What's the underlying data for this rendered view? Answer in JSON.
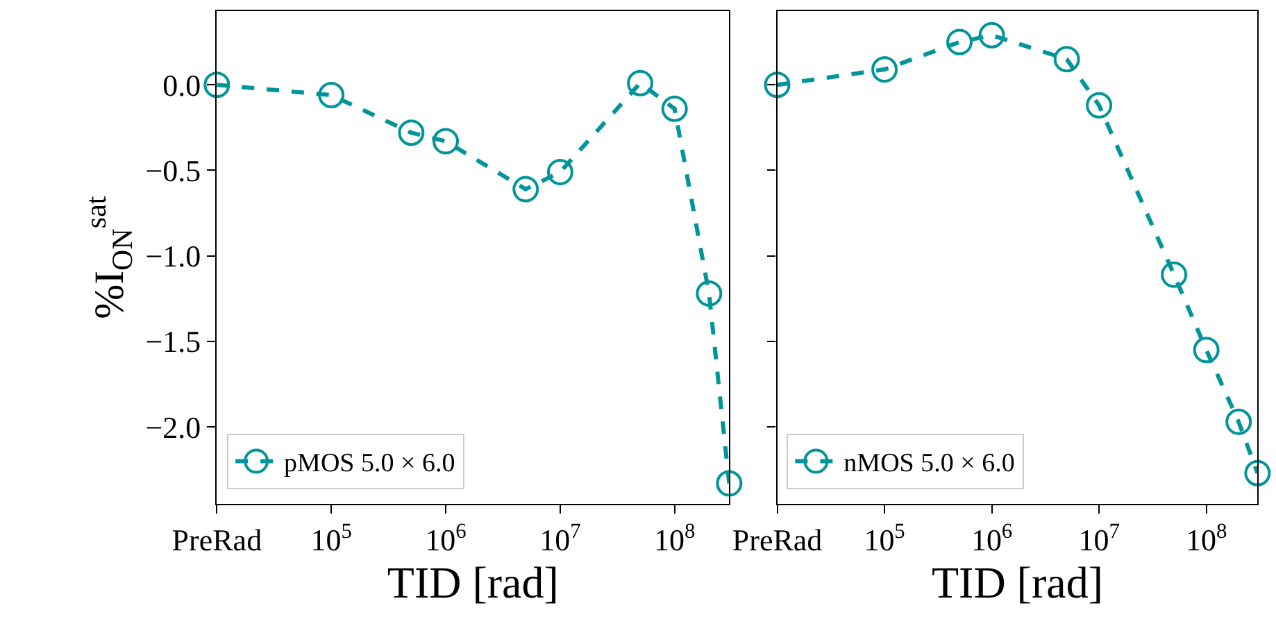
{
  "chart_data": [
    {
      "type": "line",
      "xlabel": "TID [rad]",
      "ylabel": "%I$_{ON}$$^{sat}$",
      "log": "x",
      "marker": "circle",
      "line_style": "dashed",
      "legend": "bottom left",
      "x": [
        10000,
        100000,
        500000,
        1000000,
        5000000,
        10000000,
        50000000,
        100000000,
        200000000,
        300000000
      ],
      "series": [
        {
          "name": "pMOS 5.0 × 6.0",
          "color": "#00959a",
          "values": [
            0,
            -0.06,
            -0.28,
            -0.33,
            -0.61,
            -0.51,
            0.01,
            -0.14,
            -1.22,
            -2.33
          ]
        }
      ],
      "xlim": [
        10000,
        300000000
      ],
      "xticks": [
        {
          "value": 10000,
          "label": "PreRad"
        },
        {
          "value": 100000,
          "label": "10$^{5}$"
        },
        {
          "value": 1000000,
          "label": "10$^{6}$"
        },
        {
          "value": 10000000,
          "label": "10$^{7}$"
        },
        {
          "value": 100000000,
          "label": "10$^{8}$"
        }
      ],
      "ylim": [
        -2.45,
        0.43
      ],
      "yticks": [
        {
          "value": 0,
          "label": "0.0"
        },
        {
          "value": -0.5,
          "label": "−0.5"
        },
        {
          "value": -1,
          "label": "−1.0"
        },
        {
          "value": -1.5,
          "label": "−1.5"
        },
        {
          "value": -2,
          "label": "−2.0"
        }
      ]
    },
    {
      "type": "line",
      "xlabel": "TID [rad]",
      "log": "x",
      "marker": "circle",
      "line_style": "dashed",
      "legend": "bottom left",
      "tick_labels": "x",
      "x": [
        10000,
        100000,
        500000,
        1000000,
        5000000,
        10000000,
        50000000,
        100000000,
        200000000,
        300000000
      ],
      "series": [
        {
          "name": "nMOS 5.0 × 6.0",
          "color": "#00959a",
          "values": [
            0,
            0.09,
            0.25,
            0.29,
            0.15,
            -0.12,
            -1.11,
            -1.55,
            -1.97,
            -2.27
          ]
        }
      ],
      "xlim": [
        10000,
        300000000
      ],
      "xticks": [
        {
          "value": 10000,
          "label": "PreRad"
        },
        {
          "value": 100000,
          "label": "10$^{5}$"
        },
        {
          "value": 1000000,
          "label": "10$^{6}$"
        },
        {
          "value": 10000000,
          "label": "10$^{7}$"
        },
        {
          "value": 100000000,
          "label": "10$^{8}$"
        }
      ],
      "ylim": [
        -2.45,
        0.43
      ],
      "yticks": [
        0,
        -0.5,
        -1,
        -1.5,
        -2
      ]
    }
  ]
}
